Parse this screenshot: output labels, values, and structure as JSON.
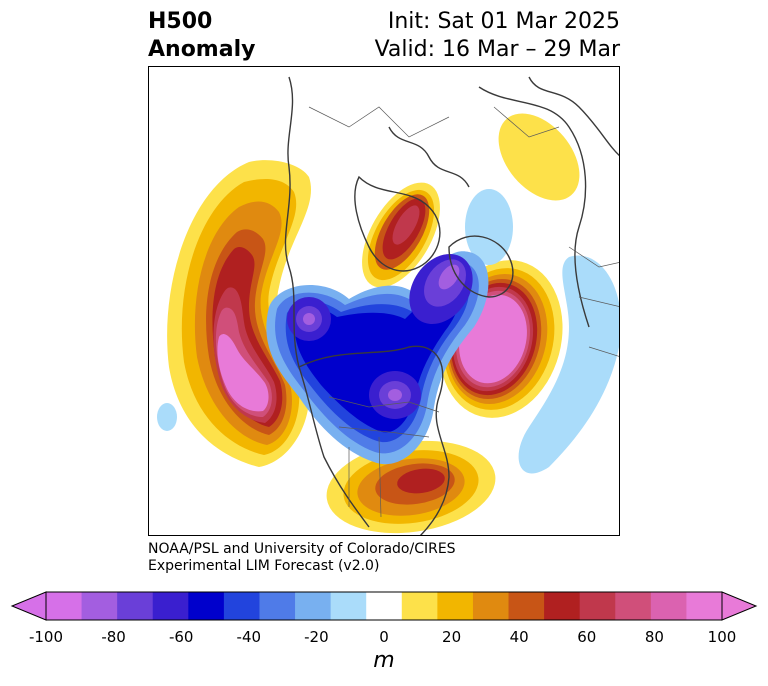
{
  "title": {
    "left_line1": "H500",
    "left_line2": "Anomaly",
    "right_line1": "Init: Sat 01 Mar 2025",
    "right_line2": "Valid: 16 Mar – 29 Mar"
  },
  "credit": {
    "line1": "NOAA/PSL and University of Colorado/CIRES",
    "line2": "Experimental LIM Forecast (v2.0)"
  },
  "colorbar": {
    "unit": "m",
    "ticks": [
      "-100",
      "-80",
      "-60",
      "-40",
      "-20",
      "0",
      "20",
      "40",
      "60",
      "80",
      "100"
    ],
    "levels": [
      -100,
      -90,
      -80,
      -70,
      -60,
      -50,
      -40,
      -30,
      -20,
      -10,
      10,
      20,
      30,
      40,
      50,
      60,
      70,
      80,
      90,
      100
    ],
    "colors": [
      "#d670e8",
      "#a35ee0",
      "#6a3fd8",
      "#3a1fcf",
      "#0000cc",
      "#2244dd",
      "#4f7be8",
      "#78b0f0",
      "#aadcfa",
      "#ffffff",
      "#fde14a",
      "#f2b600",
      "#e08a10",
      "#c85516",
      "#b02020",
      "#c0384c",
      "#d04f7a",
      "#db62b0",
      "#e87ad8"
    ]
  },
  "map": {
    "projection": "north-polar-stereographic",
    "anomalies": [
      {
        "region": "North Pacific / Gulf of Alaska",
        "sign": "positive",
        "peak_m": 100
      },
      {
        "region": "Northeast Atlantic / Western Europe",
        "sign": "positive",
        "peak_m": 100
      },
      {
        "region": "Greenland",
        "sign": "positive",
        "peak_m": 60
      },
      {
        "region": "Southeastern United States",
        "sign": "positive",
        "peak_m": 60
      },
      {
        "region": "Western Siberia",
        "sign": "positive",
        "peak_m": 20
      },
      {
        "region": "Alaska / Bering Sea",
        "sign": "negative",
        "peak_m": -90
      },
      {
        "region": "Canadian Arctic / Hudson Bay",
        "sign": "negative",
        "peak_m": -90
      },
      {
        "region": "Barents / Kara Sea",
        "sign": "negative",
        "peak_m": -90
      },
      {
        "region": "Subtropical East Atlantic",
        "sign": "negative",
        "peak_m": -20
      },
      {
        "region": "Central Asia",
        "sign": "negative",
        "peak_m": -20
      }
    ]
  }
}
